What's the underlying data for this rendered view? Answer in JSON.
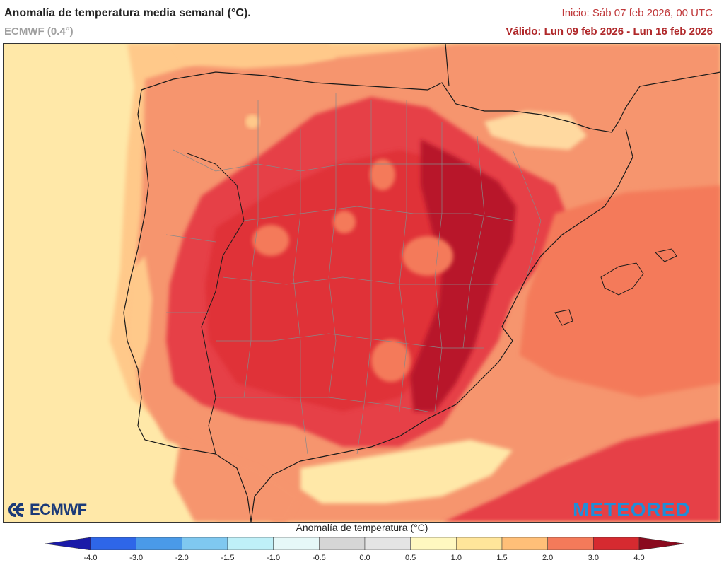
{
  "header": {
    "title": "Anomalía de temperatura media semanal (°C).",
    "model": "ECMWF (0.4°)",
    "init": "Inicio: Sáb 07 feb 2026, 00 UTC",
    "valid": "Válido: Lun 09 feb 2026 - Lun 16 feb 2026"
  },
  "map": {
    "region": "Península Ibérica",
    "variable": "temperature_anomaly",
    "unit": "°C"
  },
  "logos": {
    "left": "ECMWF",
    "right": "METEORED"
  },
  "legend": {
    "title": "Anomalía de temperatura (°C)",
    "ticks": [
      "-4.0",
      "-3.0",
      "-2.0",
      "-1.5",
      "-1.0",
      "-0.5",
      "0.0",
      "0.5",
      "1.0",
      "1.5",
      "2.0",
      "3.0",
      "4.0"
    ],
    "colors": [
      "#2222cc",
      "#2e66e8",
      "#4a9ae8",
      "#7fc8f0",
      "#bff0f8",
      "#e6f8f8",
      "#d6d6d6",
      "#e4e4e4",
      "#fff8c0",
      "#ffe59a",
      "#ffbf78",
      "#f47a5a",
      "#d62a30"
    ],
    "min_arrow_color": "#1a1aa8",
    "max_arrow_color": "#8a0a1e"
  }
}
